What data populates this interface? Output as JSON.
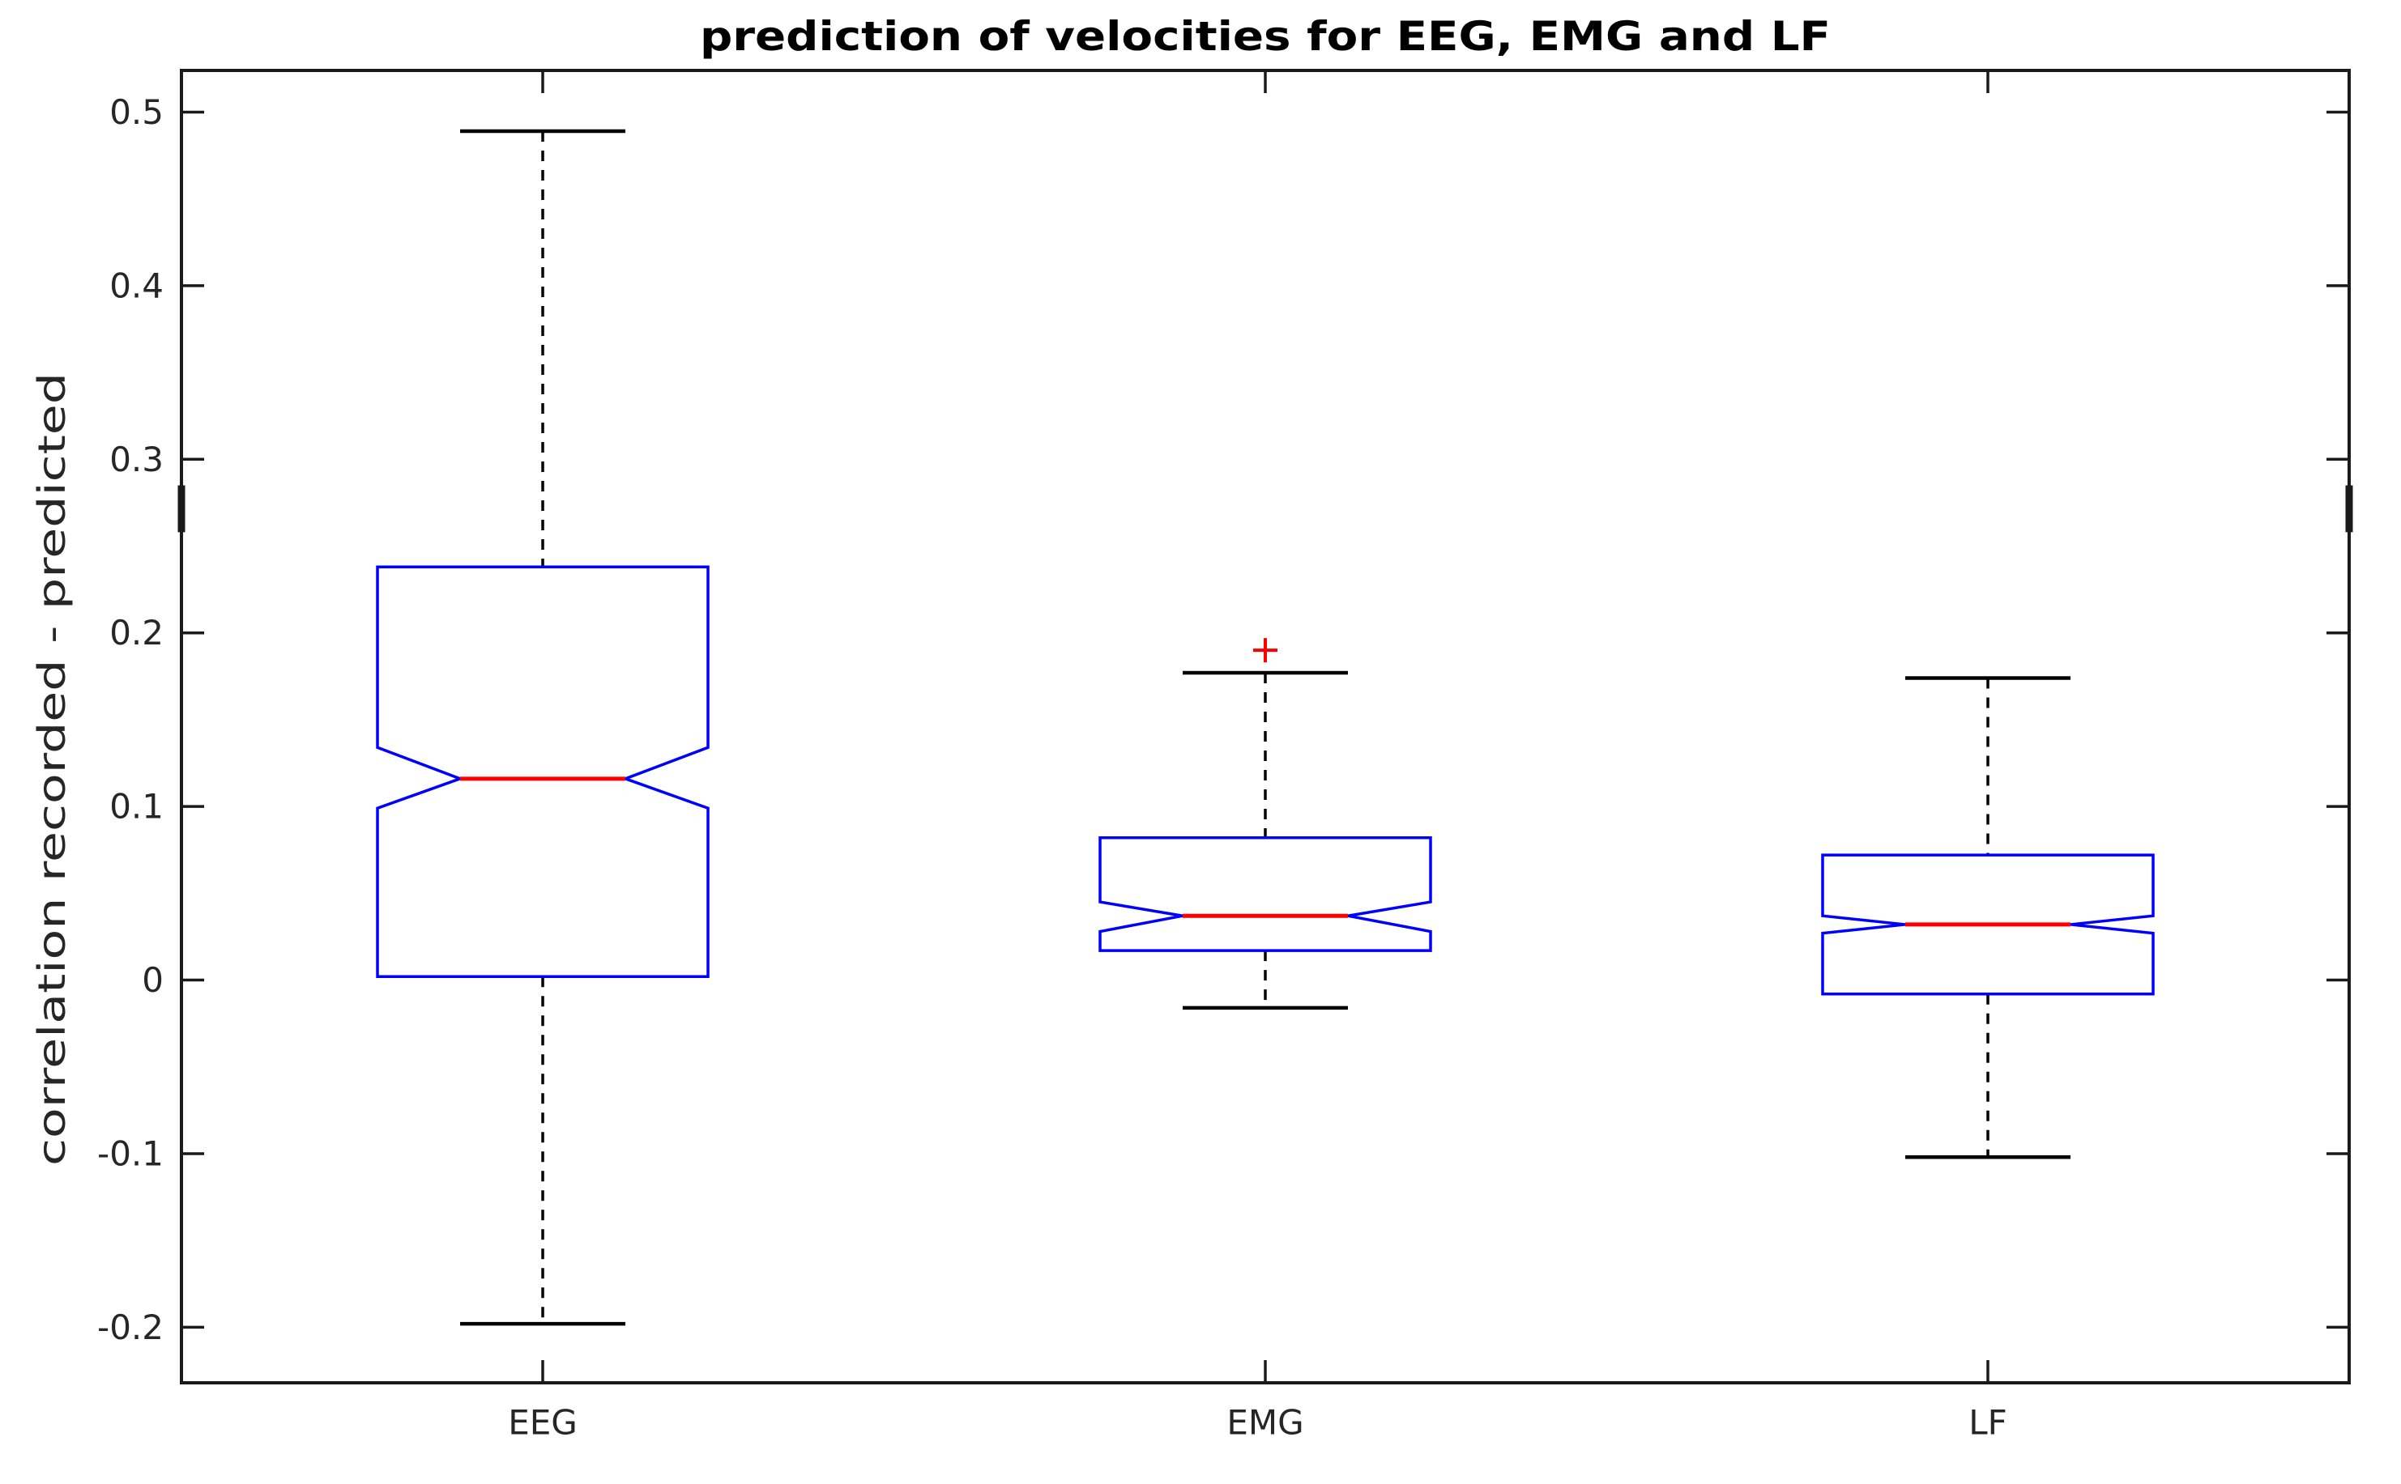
{
  "figure": {
    "title": "prediction of velocities for EEG, EMG and LF",
    "ylabel": "correlation recorded - predicted"
  },
  "chart_data": {
    "type": "boxplot",
    "notched": true,
    "title": "prediction of velocities for EEG, EMG and LF",
    "xlabel": "",
    "ylabel": "correlation recorded - predicted",
    "categories": [
      "EEG",
      "EMG",
      "LF"
    ],
    "ylim": [
      -0.232,
      0.524
    ],
    "grid": false,
    "yticks": [
      {
        "value": 0.5,
        "label": "0.5"
      },
      {
        "value": 0.4,
        "label": "0.4"
      },
      {
        "value": 0.3,
        "label": "0.3"
      },
      {
        "value": 0.2,
        "label": "0.2"
      },
      {
        "value": 0.1,
        "label": "0.1"
      },
      {
        "value": 0.0,
        "label": "0"
      },
      {
        "value": -0.1,
        "label": "-0.1"
      },
      {
        "value": -0.2,
        "label": "-0.2"
      }
    ],
    "series": [
      {
        "label": "EEG",
        "whisker_low": -0.198,
        "q1": 0.002,
        "median": 0.116,
        "q3": 0.238,
        "whisker_high": 0.489,
        "notch_low": 0.099,
        "notch_high": 0.134,
        "outliers": []
      },
      {
        "label": "EMG",
        "whisker_low": -0.016,
        "q1": 0.017,
        "median": 0.037,
        "q3": 0.082,
        "whisker_high": 0.177,
        "notch_low": 0.028,
        "notch_high": 0.045,
        "outliers": [
          0.19
        ]
      },
      {
        "label": "LF",
        "whisker_low": -0.102,
        "q1": -0.008,
        "median": 0.032,
        "q3": 0.072,
        "whisker_high": 0.174,
        "notch_low": 0.027,
        "notch_high": 0.037,
        "outliers": []
      }
    ],
    "axis_artifacts": [
      {
        "side": "left",
        "value_from": 0.285,
        "value_to": 0.258
      },
      {
        "side": "right",
        "value_from": 0.285,
        "value_to": 0.258
      }
    ],
    "colors": {
      "box": "#0000ff",
      "median": "#ff0000",
      "outlier": "#ff0000",
      "whisker": "#000000",
      "cap": "#000000",
      "axis": "#1a1a1a",
      "tick_label": "#262626"
    },
    "legend": null
  }
}
